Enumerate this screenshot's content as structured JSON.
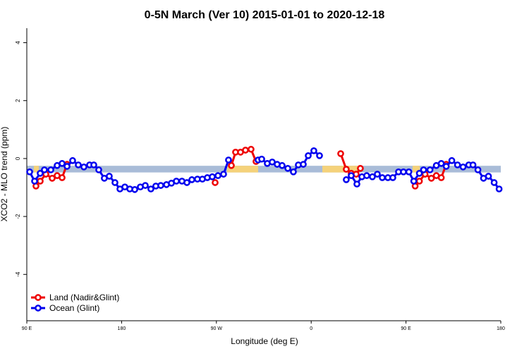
{
  "chart_data": {
    "type": "line",
    "title": "0-5N March (Ver 10)   2015-01-01 to 2020-12-18",
    "xlabel": "Longitude (deg E)",
    "ylabel": "XCO2 - MLO trend (ppm)",
    "xlim": [
      90,
      540
    ],
    "ylim": [
      -5.6,
      4.5
    ],
    "xticks": [
      {
        "value": 90,
        "label": "90 E"
      },
      180,
      {
        "value": 270,
        "label": "90 W"
      },
      0,
      {
        "value": 450,
        "label": "90 E"
      },
      {
        "value": 540,
        "label": "180"
      }
    ],
    "yticks": [
      -4,
      -2,
      0,
      2,
      4
    ],
    "band": {
      "color": "#a9bcd8",
      "y": [
        -0.48,
        -0.25
      ]
    },
    "highlight": {
      "color": "#f5d27a",
      "x": [
        [
          96.7,
          101.4
        ],
        [
          280.2,
          309.6
        ],
        [
          370.6,
          406.1
        ],
        [
          456.3,
          463
        ]
      ]
    },
    "legend": "bottom-left",
    "series": [
      {
        "name": "Land (Nadir&Glint)",
        "color": "#ee0000",
        "x": [
          98.7,
          102.7,
          108.1,
          114.1,
          118.8,
          123.5,
          128.2,
          null,
          268.8,
          null,
          284.2,
          288.2,
          292.9,
          297.6,
          302.9,
          307.6,
          null,
          388.0,
          393.3,
          398.0,
          402.7,
          406.7,
          null,
          458.7,
          462.7,
          468.1,
          474.1,
          478.8,
          483.5,
          488.2
        ],
        "values": [
          -0.95,
          -0.78,
          -0.54,
          -0.68,
          -0.59,
          -0.66,
          -0.2,
          null,
          -0.83,
          null,
          -0.24,
          0.22,
          0.22,
          0.29,
          0.32,
          -0.1,
          null,
          0.17,
          -0.37,
          -0.51,
          -0.54,
          -0.34,
          null,
          -0.95,
          -0.78,
          -0.54,
          -0.68,
          -0.59,
          -0.66,
          -0.2
        ]
      },
      {
        "name": "Ocean (Glint)",
        "color": "#0000ee",
        "x": [
          92.7,
          97.4,
          102.7,
          106.7,
          112.8,
          118.8,
          123.5,
          128.2,
          133.5,
          138.9,
          144.2,
          149.6,
          153.6,
          158.3,
          163.6,
          168.3,
          173.7,
          178.4,
          183.1,
          187.8,
          192.5,
          197.8,
          202.5,
          207.8,
          212.5,
          217.2,
          222.6,
          227.3,
          232.0,
          237.3,
          242.0,
          246.7,
          252.0,
          256.7,
          261.4,
          266.1,
          271.5,
          276.8,
          281.5,
          null,
          309.6,
          313.0,
          318.3,
          323.0,
          327.7,
          332.4,
          337.8,
          343.1,
          347.8,
          352.5,
          357.2,
          362.5,
          367.9,
          null,
          393.3,
          398.0,
          403.4,
          408.1,
          412.7,
          418.1,
          422.8,
          427.5,
          432.8,
          437.5,
          442.9,
          447.6,
          452.7,
          457.4,
          462.7,
          466.7,
          472.8,
          478.8,
          483.5,
          488.2,
          493.5,
          498.9,
          504.2,
          509.6,
          513.6,
          518.3,
          523.6,
          528.3,
          533.7,
          538.4
        ],
        "values": [
          -0.46,
          -0.78,
          -0.51,
          -0.39,
          -0.39,
          -0.24,
          -0.17,
          -0.27,
          -0.07,
          -0.22,
          -0.29,
          -0.22,
          -0.22,
          -0.39,
          -0.68,
          -0.61,
          -0.83,
          -1.05,
          -0.98,
          -1.05,
          -1.07,
          -0.98,
          -0.93,
          -1.05,
          -0.95,
          -0.93,
          -0.9,
          -0.85,
          -0.78,
          -0.78,
          -0.83,
          -0.73,
          -0.71,
          -0.71,
          -0.66,
          -0.63,
          -0.59,
          -0.54,
          -0.05,
          null,
          -0.05,
          -0.02,
          -0.17,
          -0.12,
          -0.2,
          -0.24,
          -0.34,
          -0.46,
          -0.22,
          -0.2,
          0.1,
          0.27,
          0.1,
          null,
          -0.73,
          -0.59,
          -0.88,
          -0.63,
          -0.59,
          -0.63,
          -0.54,
          -0.66,
          -0.66,
          -0.66,
          -0.46,
          -0.46,
          -0.46,
          -0.78,
          -0.51,
          -0.39,
          -0.39,
          -0.24,
          -0.17,
          -0.27,
          -0.07,
          -0.22,
          -0.29,
          -0.22,
          -0.22,
          -0.39,
          -0.68,
          -0.61,
          -0.83,
          -1.05
        ]
      }
    ]
  }
}
